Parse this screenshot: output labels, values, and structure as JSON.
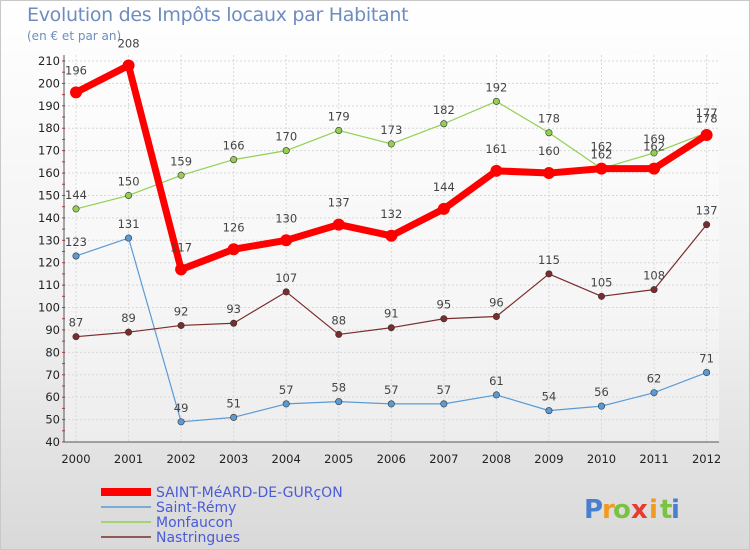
{
  "chart_data": {
    "type": "line",
    "title": "Evolution des Impôts locaux par Habitant",
    "subtitle": "(en € et par an)",
    "xlabel": "",
    "ylabel": "",
    "categories": [
      "2000",
      "2001",
      "2002",
      "2003",
      "2004",
      "2005",
      "2006",
      "2007",
      "2008",
      "2009",
      "2010",
      "2011",
      "2012"
    ],
    "ylim": [
      40,
      210
    ],
    "yticks": [
      40,
      50,
      60,
      70,
      80,
      90,
      100,
      110,
      120,
      130,
      140,
      150,
      160,
      170,
      180,
      190,
      200,
      210
    ],
    "grid": true,
    "legend_position": "bottom-left",
    "series": [
      {
        "name": "SAINT-MéARD-DE-GURçON",
        "color": "#ff0000",
        "values": [
          196,
          208,
          117,
          126,
          130,
          137,
          132,
          144,
          161,
          160,
          162,
          162,
          177
        ]
      },
      {
        "name": "Saint-Rémy",
        "color": "#5b9bd5",
        "values": [
          123,
          131,
          49,
          51,
          57,
          58,
          57,
          57,
          61,
          54,
          56,
          62,
          71
        ]
      },
      {
        "name": "Monfaucon",
        "color": "#92d050",
        "values": [
          144,
          150,
          159,
          166,
          170,
          179,
          173,
          182,
          192,
          178,
          162,
          169,
          178
        ]
      },
      {
        "name": "Nastringues",
        "color": "#7b2c2c",
        "values": [
          87,
          89,
          92,
          93,
          107,
          88,
          91,
          95,
          96,
          115,
          105,
          108,
          137
        ]
      }
    ]
  },
  "brand": {
    "name": "Proxiti",
    "letters": [
      "P",
      "r",
      "o",
      "x",
      "i",
      "t",
      "i"
    ]
  }
}
